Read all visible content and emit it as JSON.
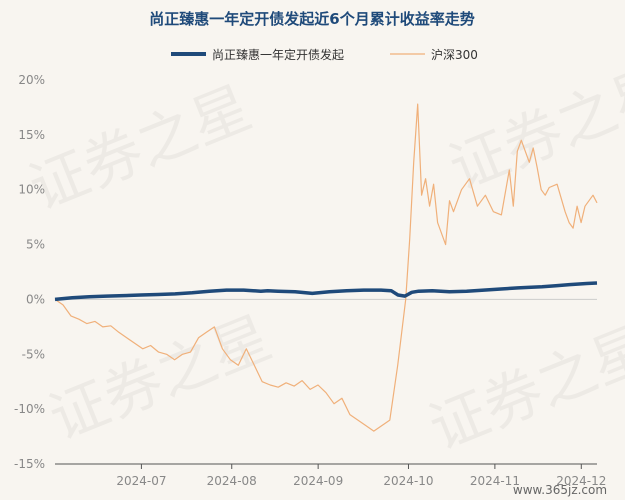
{
  "chart_data": {
    "type": "line",
    "title": "尚正臻惠一年定开债发起近6个月累计收益率走势",
    "xlabel": "",
    "ylabel": "",
    "ylim": [
      -15,
      20
    ],
    "yticks": [
      "20%",
      "15%",
      "10%",
      "5%",
      "0%",
      "-5%",
      "-10%",
      "-15%"
    ],
    "yticks_values": [
      20,
      15,
      10,
      5,
      0,
      -5,
      -10,
      -15
    ],
    "xticks": [
      "2024-07",
      "2024-08",
      "2024-09",
      "2024-10",
      "2024-11",
      "2024-12"
    ],
    "xticks_index": [
      22,
      45,
      67,
      90,
      112,
      134
    ],
    "x_count": 137,
    "grid": false,
    "legend_position": "top",
    "series": [
      {
        "name": "尚正臻惠一年定开债发起",
        "color": "#1f4a7a",
        "width": 3.5,
        "points": [
          [
            0,
            0.0
          ],
          [
            5,
            0.15
          ],
          [
            10,
            0.25
          ],
          [
            15,
            0.3
          ],
          [
            20,
            0.35
          ],
          [
            25,
            0.4
          ],
          [
            30,
            0.45
          ],
          [
            35,
            0.5
          ],
          [
            40,
            0.6
          ],
          [
            45,
            0.75
          ],
          [
            50,
            0.85
          ],
          [
            55,
            0.85
          ],
          [
            60,
            0.75
          ],
          [
            62,
            0.8
          ],
          [
            65,
            0.75
          ],
          [
            70,
            0.7
          ],
          [
            75,
            0.55
          ],
          [
            80,
            0.7
          ],
          [
            85,
            0.8
          ],
          [
            90,
            0.85
          ],
          [
            95,
            0.85
          ],
          [
            98,
            0.8
          ],
          [
            100,
            0.4
          ],
          [
            102,
            0.3
          ],
          [
            104,
            0.65
          ],
          [
            106,
            0.75
          ],
          [
            110,
            0.8
          ],
          [
            115,
            0.7
          ],
          [
            120,
            0.75
          ],
          [
            125,
            0.85
          ],
          [
            130,
            0.95
          ],
          [
            135,
            1.05
          ],
          [
            138,
            1.1
          ],
          [
            142,
            1.15
          ],
          [
            146,
            1.25
          ],
          [
            150,
            1.35
          ],
          [
            155,
            1.45
          ],
          [
            158,
            1.5
          ]
        ]
      },
      {
        "name": "沪深300",
        "color": "#f0b07a",
        "width": 1.2,
        "points": [
          [
            0,
            0.0
          ],
          [
            2,
            -0.5
          ],
          [
            4,
            -1.5
          ],
          [
            6,
            -1.8
          ],
          [
            8,
            -2.2
          ],
          [
            10,
            -2.0
          ],
          [
            12,
            -2.5
          ],
          [
            14,
            -2.4
          ],
          [
            16,
            -3.0
          ],
          [
            18,
            -3.5
          ],
          [
            20,
            -4.0
          ],
          [
            22,
            -4.5
          ],
          [
            24,
            -4.2
          ],
          [
            26,
            -4.8
          ],
          [
            28,
            -5.0
          ],
          [
            30,
            -5.5
          ],
          [
            32,
            -5.0
          ],
          [
            34,
            -4.8
          ],
          [
            36,
            -3.5
          ],
          [
            38,
            -3.0
          ],
          [
            40,
            -2.5
          ],
          [
            42,
            -4.5
          ],
          [
            44,
            -5.5
          ],
          [
            46,
            -6.0
          ],
          [
            48,
            -4.5
          ],
          [
            50,
            -6.0
          ],
          [
            52,
            -7.5
          ],
          [
            54,
            -7.8
          ],
          [
            56,
            -8.0
          ],
          [
            58,
            -7.6
          ],
          [
            60,
            -7.9
          ],
          [
            62,
            -7.4
          ],
          [
            64,
            -8.2
          ],
          [
            66,
            -7.8
          ],
          [
            68,
            -8.5
          ],
          [
            70,
            -9.5
          ],
          [
            72,
            -9.0
          ],
          [
            74,
            -10.5
          ],
          [
            76,
            -11.0
          ],
          [
            78,
            -11.5
          ],
          [
            80,
            -12.0
          ],
          [
            82,
            -11.5
          ],
          [
            84,
            -11.0
          ],
          [
            86,
            -6.0
          ],
          [
            88,
            0.0
          ],
          [
            89,
            5.5
          ],
          [
            90,
            12.5
          ],
          [
            91,
            17.8
          ],
          [
            92,
            9.5
          ],
          [
            93,
            11.0
          ],
          [
            94,
            8.5
          ],
          [
            95,
            10.5
          ],
          [
            96,
            7.0
          ],
          [
            97,
            6.0
          ],
          [
            98,
            5.0
          ],
          [
            99,
            9.0
          ],
          [
            100,
            8.0
          ],
          [
            102,
            10.0
          ],
          [
            104,
            11.0
          ],
          [
            106,
            8.5
          ],
          [
            108,
            9.5
          ],
          [
            110,
            8.0
          ],
          [
            112,
            7.7
          ],
          [
            114,
            11.8
          ],
          [
            115,
            8.5
          ],
          [
            116,
            13.5
          ],
          [
            117,
            14.5
          ],
          [
            118,
            13.5
          ],
          [
            119,
            12.5
          ],
          [
            120,
            13.8
          ],
          [
            121,
            12.0
          ],
          [
            122,
            10.0
          ],
          [
            123,
            9.5
          ],
          [
            124,
            10.2
          ],
          [
            126,
            10.5
          ],
          [
            128,
            8.0
          ],
          [
            129,
            7.0
          ],
          [
            130,
            6.5
          ],
          [
            131,
            8.5
          ],
          [
            132,
            7.0
          ],
          [
            133,
            8.5
          ],
          [
            134,
            9.0
          ],
          [
            135,
            9.5
          ],
          [
            136,
            8.8
          ]
        ]
      }
    ]
  },
  "watermark": [
    "证券之星",
    "证券之星",
    "证券之星",
    "证券之星"
  ],
  "site": "www.365jz.com"
}
